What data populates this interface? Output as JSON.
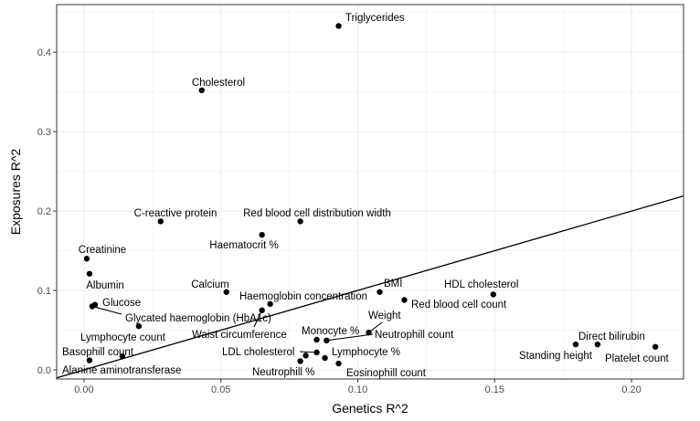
{
  "chart_data": {
    "type": "scatter",
    "xlabel": "Genetics R^2",
    "ylabel": "Exposures R^2",
    "xlim": [
      -0.01,
      0.219
    ],
    "ylim": [
      -0.0115,
      0.46
    ],
    "xticks": [
      0.0,
      0.05,
      0.1,
      0.15,
      0.2
    ],
    "xtick_labels": [
      "0.00",
      "0.05",
      "0.10",
      "0.15",
      "0.20"
    ],
    "yticks": [
      0.0,
      0.1,
      0.2,
      0.3,
      0.4
    ],
    "ytick_labels": [
      "0.0",
      "0.1",
      "0.2",
      "0.3",
      "0.4"
    ],
    "grid": true,
    "reference_line": {
      "slope": 1,
      "intercept": 0
    },
    "points": [
      {
        "label": "Triglycerides",
        "x": 0.093,
        "y": 0.433
      },
      {
        "label": "Cholesterol",
        "x": 0.043,
        "y": 0.352
      },
      {
        "label": "C-reactive protein",
        "x": 0.028,
        "y": 0.187
      },
      {
        "label": "Red blood cell distribution width",
        "x": 0.079,
        "y": 0.187
      },
      {
        "label": "Haematocrit %",
        "x": 0.065,
        "y": 0.17
      },
      {
        "label": "Creatinine",
        "x": 0.001,
        "y": 0.14
      },
      {
        "label": "Albumin",
        "x": 0.002,
        "y": 0.121
      },
      {
        "label": "Calcium",
        "x": 0.052,
        "y": 0.098
      },
      {
        "label": "Glucose",
        "x": 0.004,
        "y": 0.082
      },
      {
        "label": "Glycated haemoglobin (HbA1c)",
        "x": 0.003,
        "y": 0.08
      },
      {
        "label": "Lymphocyte count",
        "x": 0.02,
        "y": 0.055
      },
      {
        "label": "Basophill count",
        "x": 0.014,
        "y": 0.017
      },
      {
        "label": "Alanine aminotransferase",
        "x": 0.002,
        "y": 0.012
      },
      {
        "label": "Haemoglobin concentration",
        "x": 0.068,
        "y": 0.083
      },
      {
        "label": "Waist circumference",
        "x": 0.065,
        "y": 0.075
      },
      {
        "label": "BMI",
        "x": 0.108,
        "y": 0.098
      },
      {
        "label": "Red blood cell count",
        "x": 0.117,
        "y": 0.088
      },
      {
        "label": "Weight",
        "x": 0.104,
        "y": 0.047
      },
      {
        "label": "Neutrophill count",
        "x": 0.0886,
        "y": 0.037
      },
      {
        "label": "Monocyte %",
        "x": 0.085,
        "y": 0.038
      },
      {
        "label": "LDL cholesterol",
        "x": 0.085,
        "y": 0.022
      },
      {
        "label": "Lymphocyte %",
        "x": 0.088,
        "y": 0.015
      },
      {
        "label": "Neutrophill %",
        "x": 0.079,
        "y": 0.011
      },
      {
        "label": "",
        "x": 0.081,
        "y": 0.018
      },
      {
        "label": "Eosinophill count",
        "x": 0.093,
        "y": 0.008
      },
      {
        "label": "HDL cholesterol",
        "x": 0.1495,
        "y": 0.095
      },
      {
        "label": "Direct bilirubin",
        "x": 0.1876,
        "y": 0.032
      },
      {
        "label": "Standing height",
        "x": 0.1796,
        "y": 0.032
      },
      {
        "label": "Platelet count",
        "x": 0.2087,
        "y": 0.029
      }
    ]
  }
}
